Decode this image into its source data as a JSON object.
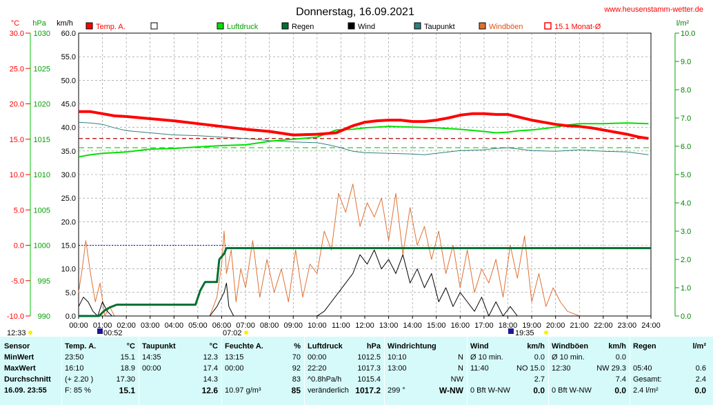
{
  "title": "Donnerstag, 16.09.2021",
  "site": "www.heusenstamm-wetter.de",
  "axis_units": {
    "temp": "°C",
    "press": "hPa",
    "wind": "km/h",
    "rain": "l/m²"
  },
  "legend": [
    {
      "label": "Temp. A.",
      "color": "#ff0000"
    },
    {
      "label": "",
      "color": "#ffffff"
    },
    {
      "label": "Luftdruck",
      "color": "#00e000"
    },
    {
      "label": "Regen",
      "color": "#006f30"
    },
    {
      "label": "Wind",
      "color": "#000000"
    },
    {
      "label": "Taupunkt",
      "color": "#2f7f7f"
    },
    {
      "label": "Windböen",
      "color": "#e07030"
    },
    {
      "label": "15.1 Monat-Ø",
      "color": "#ff0000"
    }
  ],
  "markers": {
    "sunrise_left": "12:33",
    "moon_set": "00:52",
    "sunrise": "07:02",
    "sunset": "19:35"
  },
  "chart_data": {
    "type": "line",
    "x_ticks": [
      "00:00",
      "01:00",
      "02:00",
      "03:00",
      "04:00",
      "05:00",
      "06:00",
      "07:00",
      "08:00",
      "09:00",
      "10:00",
      "11:00",
      "12:00",
      "13:00",
      "14:00",
      "15:00",
      "16:00",
      "17:00",
      "18:00",
      "19:00",
      "20:00",
      "21:00",
      "22:00",
      "23:00",
      "24:00"
    ],
    "wind_ticks": [
      "0.0",
      "5.0",
      "10.0",
      "15.0",
      "20.0",
      "25.0",
      "30.0",
      "35.0",
      "40.0",
      "45.0",
      "50.0",
      "55.0",
      "60.0"
    ],
    "temp_ticks": [
      "-10.0",
      "-5.0",
      "0.0",
      "5.0",
      "10.0",
      "15.0",
      "20.0",
      "25.0",
      "30.0"
    ],
    "press_ticks": [
      "990",
      "995",
      "1000",
      "1005",
      "1010",
      "1015",
      "1020",
      "1025",
      "1030"
    ],
    "rain_ticks": [
      "0.0",
      "1.0",
      "2.0",
      "3.0",
      "4.0",
      "5.0",
      "6.0",
      "7.0",
      "8.0",
      "9.0",
      "10.0"
    ],
    "xlim": [
      0,
      24
    ],
    "wind_lim": [
      0,
      60
    ],
    "temp_lim": [
      -10,
      30
    ],
    "press_lim": [
      990,
      1030
    ],
    "rain_lim": [
      0,
      10
    ],
    "month_avg_temp": 15.1,
    "month_avg_press": 1013.8,
    "series": [
      {
        "name": "Temp. A.",
        "axis": "temp",
        "color": "#ff0000",
        "x": [
          0,
          0.5,
          1,
          1.5,
          2,
          3,
          4,
          5,
          6,
          7,
          8,
          9,
          10,
          10.8,
          11.5,
          12,
          12.5,
          13,
          13.5,
          14,
          14.5,
          15,
          15.5,
          16,
          16.5,
          17,
          17.5,
          18,
          18.5,
          19,
          19.5,
          20,
          20.5,
          21,
          21.5,
          22,
          22.5,
          23,
          23.5,
          23.9
        ],
        "y": [
          18.9,
          18.9,
          18.6,
          18.3,
          18.2,
          17.9,
          17.6,
          17.2,
          16.8,
          16.4,
          16.1,
          15.6,
          15.7,
          15.9,
          16.9,
          17.4,
          17.6,
          17.7,
          17.7,
          17.5,
          17.5,
          17.7,
          18.0,
          18.4,
          18.6,
          18.6,
          18.5,
          18.5,
          18.1,
          17.7,
          17.4,
          17.1,
          16.9,
          16.8,
          16.6,
          16.3,
          16.0,
          15.7,
          15.3,
          15.1
        ]
      },
      {
        "name": "Luftdruck",
        "axis": "press",
        "color": "#00e000",
        "x": [
          0,
          0.5,
          1,
          2,
          3,
          4,
          5,
          6,
          7,
          8,
          9,
          10,
          10.8,
          11.5,
          12,
          13,
          14,
          15,
          16,
          17,
          17.5,
          18,
          18.5,
          19,
          19.5,
          20,
          20.5,
          21,
          22,
          23,
          23.9
        ],
        "y": [
          1012.5,
          1012.8,
          1013.0,
          1013.2,
          1013.6,
          1013.7,
          1013.9,
          1014.1,
          1014.2,
          1014.7,
          1015.0,
          1015.3,
          1016.3,
          1016.4,
          1016.6,
          1016.8,
          1016.7,
          1016.6,
          1016.4,
          1016.1,
          1015.9,
          1016.0,
          1016.2,
          1016.3,
          1016.5,
          1016.7,
          1017.0,
          1017.2,
          1017.2,
          1017.3,
          1017.2
        ]
      },
      {
        "name": "Taupunkt",
        "axis": "temp",
        "color": "#2f7f7f",
        "x": [
          0,
          0.5,
          1,
          1.5,
          2,
          3,
          4,
          5,
          6,
          7,
          8,
          9,
          10,
          10.5,
          11,
          11.5,
          12,
          13,
          14,
          14.5,
          15,
          15.5,
          16,
          17,
          17.5,
          18,
          18.5,
          19,
          20,
          21,
          22,
          23,
          23.9
        ],
        "y": [
          17.4,
          17.3,
          17.1,
          16.6,
          16.2,
          15.9,
          15.6,
          15.5,
          15.3,
          15.1,
          14.8,
          14.6,
          14.5,
          14.2,
          13.8,
          13.3,
          13.1,
          13.0,
          12.9,
          12.8,
          13.0,
          13.2,
          13.4,
          13.5,
          13.7,
          13.8,
          13.6,
          13.4,
          13.3,
          13.5,
          13.3,
          13.2,
          12.8
        ]
      },
      {
        "name": "Regen",
        "axis": "rain",
        "color": "#006f30",
        "x": [
          0,
          0.85,
          1.1,
          1.3,
          1.6,
          2,
          3,
          4,
          4.9,
          5.1,
          5.3,
          5.5,
          5.8,
          5.9,
          6.1,
          6.2,
          24
        ],
        "y": [
          0,
          0,
          0.2,
          0.3,
          0.4,
          0.4,
          0.4,
          0.4,
          0.4,
          0.9,
          1.2,
          1.2,
          1.2,
          2.0,
          2.2,
          2.4,
          2.4
        ]
      },
      {
        "name": "Wind",
        "axis": "wind",
        "color": "#000000",
        "x": [
          0,
          0.2,
          0.4,
          0.6,
          0.8,
          1,
          1.2,
          1.4,
          1.6,
          1.8,
          2,
          3,
          4,
          5,
          5.5,
          5.8,
          6,
          6.1,
          6.2,
          6.3,
          6.5,
          7,
          8,
          9,
          10,
          10.3,
          10.6,
          10.9,
          11.2,
          11.5,
          11.8,
          12.1,
          12.4,
          12.7,
          13,
          13.3,
          13.6,
          13.9,
          14.2,
          14.5,
          14.8,
          15.1,
          15.4,
          15.7,
          16,
          16.3,
          16.6,
          16.9,
          17.2,
          17.5,
          17.8,
          18.1,
          18.4,
          18.7,
          19,
          19.3,
          19.6,
          20,
          21,
          24
        ],
        "y": [
          2,
          4,
          3,
          1,
          0,
          3,
          1,
          0,
          0,
          0,
          0,
          0,
          0,
          0,
          0,
          2,
          4,
          5,
          7,
          2,
          0,
          0,
          0,
          0,
          0,
          1,
          3,
          5,
          7,
          9,
          13,
          11,
          14,
          10,
          12,
          9,
          13,
          7,
          10,
          6,
          9,
          3,
          6,
          2,
          5,
          3,
          1,
          4,
          0,
          3,
          0,
          2,
          0,
          0,
          0,
          0,
          0,
          0,
          0,
          0
        ]
      },
      {
        "name": "Windböen",
        "axis": "wind",
        "color": "#e07030",
        "x": [
          0,
          0.15,
          0.3,
          0.5,
          0.7,
          0.9,
          1.1,
          1.3,
          1.5,
          1.7,
          2,
          3,
          4,
          4.5,
          5,
          5.5,
          5.8,
          6,
          6.1,
          6.2,
          6.4,
          6.6,
          6.8,
          7,
          7.3,
          7.6,
          7.9,
          8.2,
          8.5,
          8.8,
          9.1,
          9.4,
          9.7,
          10,
          10.3,
          10.6,
          10.9,
          11.2,
          11.5,
          11.8,
          12.1,
          12.4,
          12.7,
          13,
          13.3,
          13.6,
          13.9,
          14.2,
          14.5,
          14.8,
          15.1,
          15.4,
          15.7,
          16,
          16.3,
          16.6,
          16.9,
          17.2,
          17.5,
          17.8,
          18.1,
          18.4,
          18.7,
          19,
          19.3,
          19.6,
          19.9,
          20.2,
          20.5,
          21,
          24
        ],
        "y": [
          5,
          10,
          16,
          9,
          3,
          7,
          0,
          2,
          0,
          0,
          0,
          0,
          0,
          0,
          0,
          0,
          4,
          11,
          18,
          9,
          14,
          3,
          10,
          6,
          16,
          4,
          12,
          5,
          10,
          3,
          14,
          4,
          11,
          9,
          18,
          14,
          26,
          22,
          28,
          19,
          24,
          21,
          25,
          16,
          26,
          13,
          23,
          15,
          19,
          12,
          18,
          9,
          15,
          6,
          14,
          5,
          10,
          7,
          12,
          4,
          15,
          8,
          17,
          3,
          9,
          2,
          6,
          3,
          1,
          0,
          0
        ]
      }
    ]
  },
  "stats": [
    {
      "header": [
        "Sensor",
        ""
      ],
      "rows": [
        [
          "MinWert",
          ""
        ],
        [
          "MaxWert",
          ""
        ],
        [
          "Durchschnitt",
          ""
        ],
        [
          "16.09. 23:55",
          ""
        ]
      ]
    },
    {
      "header": [
        "Temp. A.",
        "°C"
      ],
      "rows": [
        [
          "23:50",
          "15.1"
        ],
        [
          "16:10",
          "18.9"
        ],
        [
          "(+ 2.20 )",
          "17.30"
        ],
        [
          "F: 85 %",
          "15.1"
        ]
      ]
    },
    {
      "header": [
        "Taupunkt",
        "°C"
      ],
      "rows": [
        [
          "14:35",
          "12.3"
        ],
        [
          "00:00",
          "17.4"
        ],
        [
          "",
          "14.3"
        ],
        [
          "",
          "12.6"
        ]
      ]
    },
    {
      "header": [
        "Feuchte A.",
        "%"
      ],
      "rows": [
        [
          "13:15",
          "70"
        ],
        [
          "00:00",
          "92"
        ],
        [
          "",
          "83"
        ],
        [
          "10.97 g/m³",
          "85"
        ]
      ]
    },
    {
      "header": [
        "Luftdruck",
        "hPa"
      ],
      "rows": [
        [
          "00:00",
          "1012.5"
        ],
        [
          "22:20",
          "1017.3"
        ],
        [
          "^0.8hPa/h",
          "1015.4"
        ],
        [
          "veränderlich",
          "1017.2"
        ]
      ]
    },
    {
      "header": [
        "Windrichtung",
        ""
      ],
      "rows": [
        [
          "10:10",
          "N"
        ],
        [
          "13:00",
          "N"
        ],
        [
          "",
          "NW"
        ],
        [
          "299 °",
          "W-NW"
        ]
      ]
    },
    {
      "header": [
        "Wind",
        "km/h"
      ],
      "rows": [
        [
          "Ø 10 min.",
          "0.0"
        ],
        [
          "11:40",
          "NO 15.0"
        ],
        [
          "",
          "2.7"
        ],
        [
          "0 Bft W-NW",
          "0.0"
        ]
      ]
    },
    {
      "header": [
        "Windböen",
        "km/h"
      ],
      "rows": [
        [
          "Ø 10 min.",
          "0.0"
        ],
        [
          "12:30",
          "NW 29.3"
        ],
        [
          "",
          "7.4"
        ],
        [
          "0 Bft W-NW",
          "0.0"
        ]
      ]
    },
    {
      "header": [
        "Regen",
        "l/m²"
      ],
      "rows": [
        [
          "",
          ""
        ],
        [
          "05:40",
          "0.6"
        ],
        [
          "Gesamt:",
          "2.4"
        ],
        [
          "2.4 l/m²",
          "0.0"
        ]
      ]
    }
  ]
}
